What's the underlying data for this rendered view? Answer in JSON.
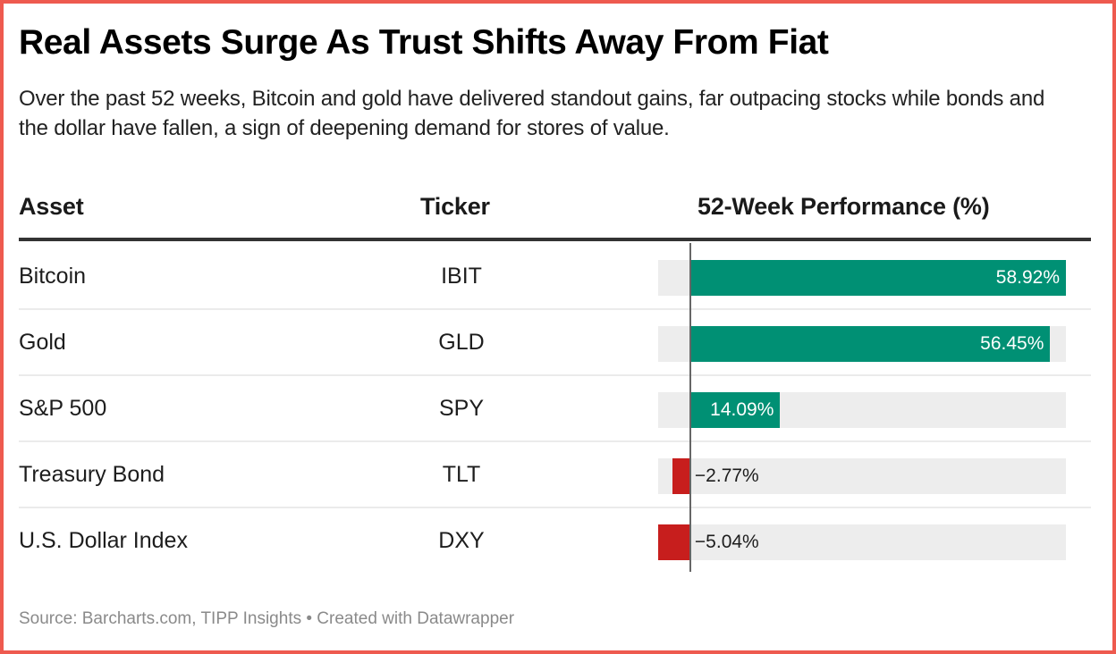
{
  "title": "Real Assets Surge As Trust Shifts Away From Fiat",
  "subtitle": "Over the past 52 weeks, Bitcoin and gold have delivered standout gains, far outpacing stocks while bonds and the dollar have fallen, a sign of deepening demand for stores of value.",
  "columns": {
    "asset": "Asset",
    "ticker": "Ticker",
    "performance": "52-Week Performance (%)"
  },
  "rows": [
    {
      "asset": "Bitcoin",
      "ticker": "IBIT",
      "value": 58.92,
      "label": "58.92%"
    },
    {
      "asset": "Gold",
      "ticker": "GLD",
      "value": 56.45,
      "label": "56.45%"
    },
    {
      "asset": "S&P 500",
      "ticker": "SPY",
      "value": 14.09,
      "label": "14.09%"
    },
    {
      "asset": "Treasury Bond",
      "ticker": "TLT",
      "value": -2.77,
      "label": "−2.77%"
    },
    {
      "asset": "U.S. Dollar Index",
      "ticker": "DXY",
      "value": -5.04,
      "label": "−5.04%"
    }
  ],
  "colors": {
    "positive": "#009074",
    "negative": "#c71e1d",
    "frame": "#ee5a4f"
  },
  "source": "Source: Barcharts.com, TIPP Insights • Created with Datawrapper",
  "chart_data": {
    "type": "table",
    "title": "Real Assets Surge As Trust Shifts Away From Fiat",
    "subtitle": "Over the past 52 weeks, Bitcoin and gold have delivered standout gains, far outpacing stocks while bonds and the dollar have fallen, a sign of deepening demand for stores of value.",
    "columns": [
      "Asset",
      "Ticker",
      "52-Week Performance (%)"
    ],
    "categories": [
      "Bitcoin",
      "Gold",
      "S&P 500",
      "Treasury Bond",
      "U.S. Dollar Index"
    ],
    "tickers": [
      "IBIT",
      "GLD",
      "SPY",
      "TLT",
      "DXY"
    ],
    "values": [
      58.92,
      56.45,
      14.09,
      -2.77,
      -5.04
    ],
    "bar_range": [
      -5.04,
      58.92
    ],
    "grid": false,
    "legend": "none"
  }
}
